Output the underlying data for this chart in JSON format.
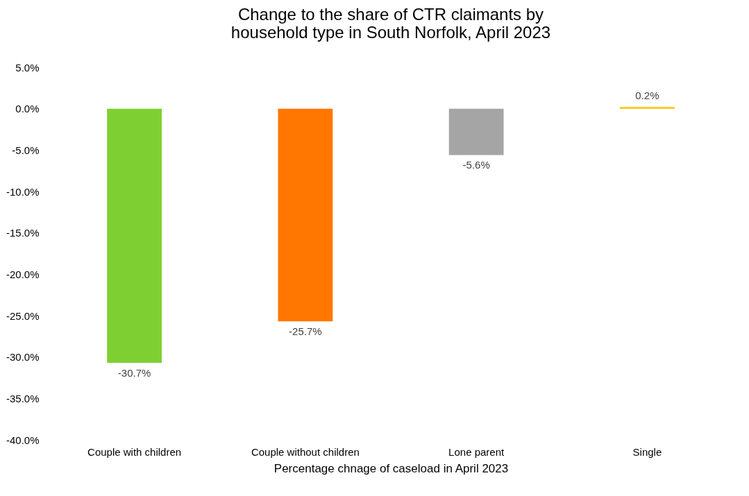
{
  "chart_data": {
    "type": "bar",
    "title": "Change to the share of CTR claimants by household type in South Norfolk, April 2023",
    "xlabel": "Percentage chnage of caseload in April 2023",
    "categories": [
      "Couple with children",
      "Couple without children",
      "Lone parent",
      "Single"
    ],
    "values": [
      -30.7,
      -25.7,
      -5.6,
      0.2
    ],
    "colors": [
      "#7ed032",
      "#ff7700",
      "#a5a5a5",
      "#ffc000"
    ],
    "value_labels": [
      "-30.7%",
      "-25.7%",
      "-5.6%",
      "0.2%"
    ],
    "ylim": [
      -40,
      5
    ],
    "yticks": [
      {
        "value": -40,
        "label": "-40.0%"
      },
      {
        "value": -35,
        "label": "-35.0%"
      },
      {
        "value": -30,
        "label": "-30.0%"
      },
      {
        "value": -25,
        "label": "-25.0%"
      },
      {
        "value": -20,
        "label": "-20.0%"
      },
      {
        "value": -15,
        "label": "-15.0%"
      },
      {
        "value": -10,
        "label": "-10.0%"
      },
      {
        "value": -5,
        "label": "-5.0%"
      },
      {
        "value": 0,
        "label": "0.0%"
      },
      {
        "value": 5,
        "label": "5.0%"
      }
    ],
    "grid": false
  }
}
